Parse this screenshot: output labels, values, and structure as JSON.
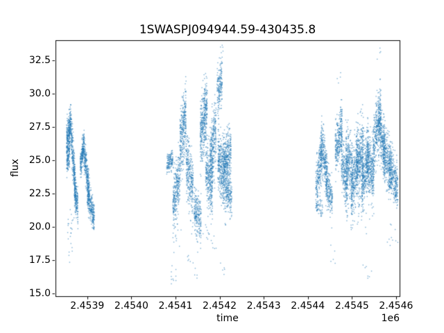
{
  "chart_data": {
    "type": "scatter",
    "title": "1SWASPJ094944.59-430435.8",
    "xlabel": "time",
    "ylabel": "flux",
    "x_offset_label": "1e6",
    "xlim": [
      2453828,
      2454608
    ],
    "ylim": [
      14.8,
      34.0
    ],
    "x_ticks": [
      2453900,
      2454000,
      2454100,
      2454200,
      2454300,
      2454400,
      2454500,
      2454600
    ],
    "x_tick_labels": [
      "2.4539",
      "2.4540",
      "2.4541",
      "2.4542",
      "2.4543",
      "2.4544",
      "2.4545",
      "2.4546"
    ],
    "y_ticks": [
      15.0,
      17.5,
      20.0,
      22.5,
      25.0,
      27.5,
      30.0,
      32.5
    ],
    "y_tick_labels": [
      "15.0",
      "17.5",
      "20.0",
      "22.5",
      "25.0",
      "27.5",
      "30.0",
      "32.5"
    ],
    "grid": false,
    "legend": "none",
    "marker_color": "#1f77b4",
    "marker_alpha": 0.6,
    "marker_size_px": 1.4,
    "frame_color": "#000000",
    "background_color": "#ffffff",
    "segments_format": [
      "x_start",
      "x_end",
      "flux_start",
      "flux_end",
      "flux_sd",
      "n_points"
    ],
    "segments": [
      [
        2453853,
        2453863,
        26.3,
        27.6,
        0.75,
        320
      ],
      [
        2453853,
        2453860,
        24.6,
        25.4,
        0.5,
        100
      ],
      [
        2453863,
        2453873,
        27.2,
        23.0,
        0.8,
        280
      ],
      [
        2453871,
        2453879,
        22.6,
        21.4,
        0.6,
        180
      ],
      [
        2453884,
        2453893,
        24.6,
        26.2,
        0.5,
        220
      ],
      [
        2453893,
        2453905,
        25.6,
        22.3,
        0.7,
        280
      ],
      [
        2453900,
        2453916,
        22.4,
        20.6,
        0.55,
        260
      ],
      [
        2453855,
        2453872,
        19.8,
        20.3,
        0.5,
        18
      ],
      [
        2453856,
        2453866,
        17.6,
        18.4,
        0.6,
        6
      ],
      [
        2454080,
        2454094,
        24.7,
        25.1,
        0.35,
        140
      ],
      [
        2454088,
        2454102,
        16.4,
        16.2,
        0.5,
        10
      ],
      [
        2454094,
        2454110,
        21.5,
        24.0,
        1.1,
        300
      ],
      [
        2454096,
        2454116,
        18.8,
        19.3,
        0.6,
        10
      ],
      [
        2454110,
        2454124,
        26.0,
        28.5,
        1.3,
        320
      ],
      [
        2454124,
        2454140,
        25.0,
        22.8,
        1.2,
        300
      ],
      [
        2454142,
        2454158,
        21.5,
        20.4,
        0.8,
        220
      ],
      [
        2454126,
        2454152,
        18.0,
        16.8,
        0.8,
        12
      ],
      [
        2454156,
        2454172,
        26.5,
        29.3,
        1.3,
        380
      ],
      [
        2454168,
        2454184,
        24.5,
        22.8,
        1.2,
        300
      ],
      [
        2454178,
        2454192,
        25.0,
        27.0,
        1.4,
        300
      ],
      [
        2454194,
        2454206,
        30.0,
        31.3,
        0.9,
        180
      ],
      [
        2454200,
        2454208,
        33.2,
        33.4,
        0.2,
        3
      ],
      [
        2454196,
        2454214,
        25.0,
        23.5,
        1.3,
        380
      ],
      [
        2454208,
        2454226,
        24.8,
        25.6,
        0.9,
        320
      ],
      [
        2454214,
        2454228,
        22.8,
        22.2,
        0.7,
        180
      ],
      [
        2454160,
        2454210,
        19.3,
        18.8,
        0.8,
        16
      ],
      [
        2454200,
        2454212,
        17.3,
        17.0,
        0.4,
        5
      ],
      [
        2454418,
        2454432,
        22.3,
        25.8,
        1.0,
        260
      ],
      [
        2454420,
        2454434,
        21.3,
        21.4,
        0.3,
        40
      ],
      [
        2454430,
        2454444,
        26.2,
        24.2,
        0.9,
        240
      ],
      [
        2454440,
        2454456,
        23.4,
        21.8,
        0.8,
        220
      ],
      [
        2454448,
        2454464,
        18.2,
        17.6,
        0.5,
        5
      ],
      [
        2454462,
        2454478,
        25.6,
        27.5,
        0.9,
        300
      ],
      [
        2454466,
        2454476,
        31.2,
        31.5,
        0.25,
        4
      ],
      [
        2454476,
        2454490,
        25.0,
        22.8,
        1.0,
        260
      ],
      [
        2454486,
        2454502,
        25.4,
        23.8,
        1.2,
        300
      ],
      [
        2454498,
        2454514,
        22.6,
        25.2,
        1.3,
        320
      ],
      [
        2454510,
        2454526,
        24.2,
        26.0,
        1.3,
        340
      ],
      [
        2454522,
        2454538,
        23.2,
        25.4,
        1.2,
        340
      ],
      [
        2454534,
        2454550,
        25.2,
        23.6,
        1.2,
        320
      ],
      [
        2454522,
        2454546,
        16.6,
        16.1,
        0.4,
        7
      ],
      [
        2454490,
        2454540,
        20.8,
        20.5,
        0.5,
        18
      ],
      [
        2454548,
        2454566,
        26.0,
        28.8,
        1.1,
        330
      ],
      [
        2454556,
        2454566,
        32.8,
        33.2,
        0.25,
        4
      ],
      [
        2454560,
        2454576,
        27.6,
        25.6,
        1.0,
        280
      ],
      [
        2454570,
        2454590,
        25.6,
        24.2,
        1.0,
        320
      ],
      [
        2454584,
        2454604,
        24.6,
        22.8,
        0.9,
        300
      ],
      [
        2454580,
        2454604,
        19.5,
        19.0,
        0.7,
        10
      ]
    ]
  }
}
